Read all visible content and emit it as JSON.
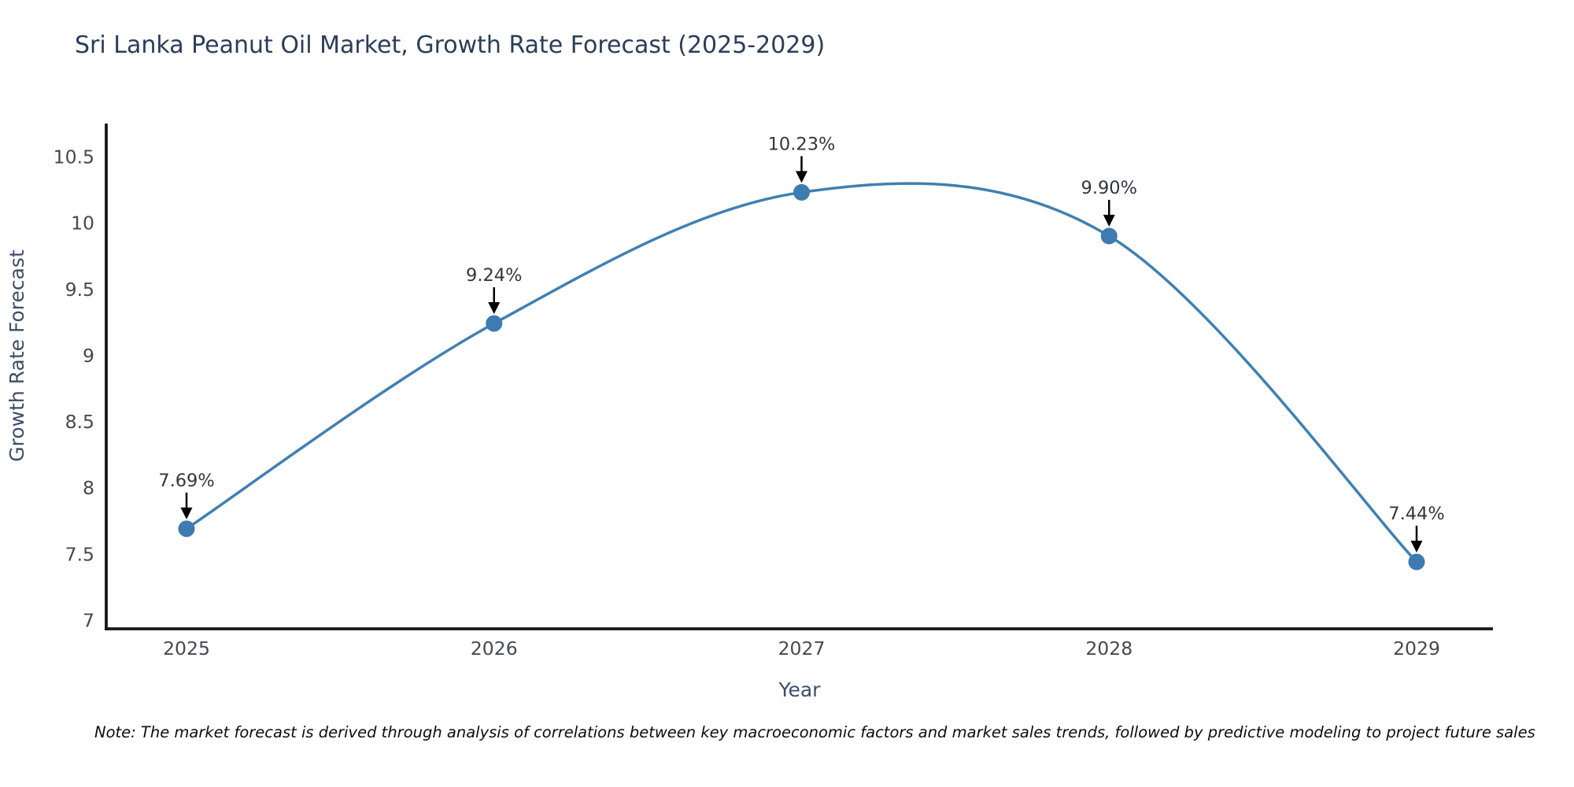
{
  "footnote": "Note: The market forecast is derived through analysis of correlations between key macroeconomic factors and market sales trends, followed by predictive modeling to project future sales",
  "chart_data": {
    "type": "line",
    "title": "Sri Lanka Peanut Oil Market, Growth Rate Forecast (2025-2029)",
    "xlabel": "Year",
    "ylabel": "Growth Rate Forecast",
    "categories": [
      "2025",
      "2026",
      "2027",
      "2028",
      "2029"
    ],
    "values": [
      7.69,
      9.24,
      10.23,
      9.9,
      7.44
    ],
    "point_labels": [
      "7.69%",
      "9.24%",
      "10.23%",
      "9.90%",
      "7.44%"
    ],
    "yticks": [
      "7",
      "7.5",
      "8",
      "8.5",
      "9",
      "9.5",
      "10",
      "10.5"
    ],
    "ytick_values": [
      7,
      7.5,
      8,
      8.5,
      9,
      9.5,
      10,
      10.5
    ],
    "ylim": [
      7,
      10.5
    ],
    "line_shape": "spline",
    "grid": false,
    "legend_position": "none",
    "colors": {
      "line": "#4080b2",
      "marker": "#3d7bb0",
      "arrow": "#000000",
      "axis": "#16181d",
      "tick_text": "#47484e",
      "title_text": "#2b3d59",
      "axis_title_text": "#3e4d68",
      "annotation_text": "#30363e",
      "note_text": "#0c0c0c",
      "background": "#ffffff"
    }
  }
}
